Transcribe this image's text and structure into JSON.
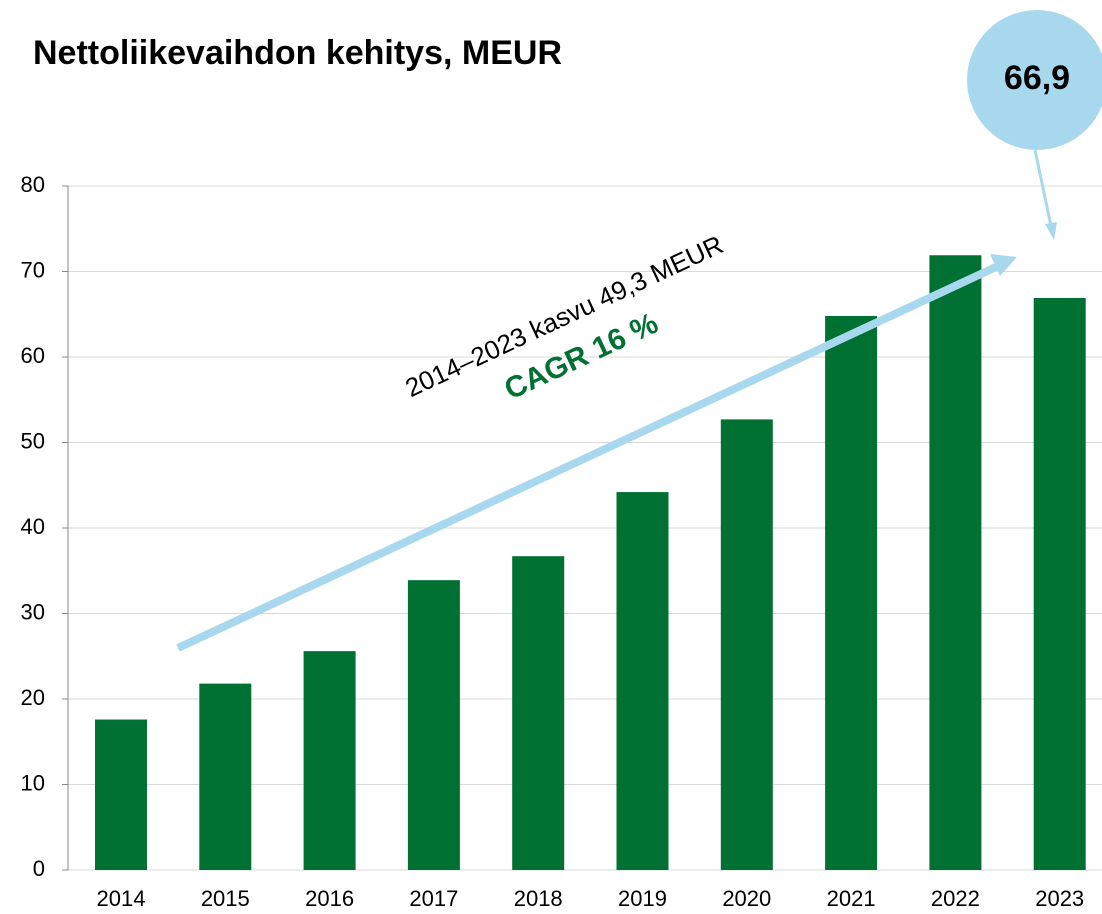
{
  "chart_data": {
    "type": "bar",
    "title": "Nettoliikevaihdon kehitys, MEUR",
    "categories": [
      "2014",
      "2015",
      "2016",
      "2017",
      "2018",
      "2019",
      "2020",
      "2021",
      "2022",
      "2023"
    ],
    "values": [
      17.6,
      21.8,
      25.6,
      33.9,
      36.7,
      44.2,
      52.7,
      64.8,
      71.9,
      66.9
    ],
    "color": "#007033",
    "ylim": [
      0,
      80
    ],
    "yticks": [
      0,
      10,
      20,
      30,
      40,
      50,
      60,
      70,
      80
    ],
    "grid": true,
    "annotations": {
      "growth": "2014–2023 kasvu 49,3 MEUR",
      "cagr": "CAGR 16 %",
      "callout": "66,9"
    }
  }
}
